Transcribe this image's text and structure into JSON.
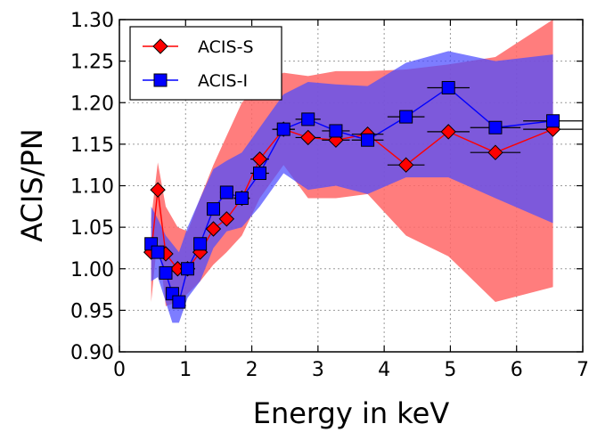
{
  "chart_data": {
    "type": "line",
    "xlabel": "Energy in keV",
    "ylabel": "ACIS/PN",
    "xlim": [
      0,
      7
    ],
    "ylim": [
      0.9,
      1.3
    ],
    "xticks": [
      "0",
      "1",
      "2",
      "3",
      "4",
      "5",
      "6",
      "7"
    ],
    "yticks": [
      "0.90",
      "0.95",
      "1.00",
      "1.05",
      "1.10",
      "1.15",
      "1.20",
      "1.25",
      "1.30"
    ],
    "grid": true,
    "legend_position": "top-left",
    "series": [
      {
        "name": "ACIS-S",
        "color": "#ff0000",
        "marker": "diamond",
        "band_color": "#ff6666",
        "x": [
          0.48,
          0.58,
          0.7,
          0.88,
          1.03,
          1.22,
          1.42,
          1.62,
          1.85,
          2.12,
          2.48,
          2.85,
          3.27,
          3.75,
          4.33,
          4.97,
          5.68,
          6.55
        ],
        "y": [
          1.02,
          1.095,
          1.018,
          1.0,
          1.0,
          1.02,
          1.048,
          1.06,
          1.085,
          1.132,
          1.168,
          1.158,
          1.155,
          1.162,
          1.125,
          1.165,
          1.14,
          1.168
        ],
        "xerr": [
          0.05,
          0.05,
          0.06,
          0.07,
          0.08,
          0.09,
          0.1,
          0.1,
          0.12,
          0.14,
          0.17,
          0.19,
          0.21,
          0.24,
          0.28,
          0.32,
          0.38,
          0.45
        ],
        "band_lower": [
          0.96,
          1.04,
          0.955,
          0.96,
          0.97,
          0.985,
          1.005,
          1.02,
          1.04,
          1.085,
          1.125,
          1.085,
          1.085,
          1.09,
          1.04,
          1.015,
          0.96,
          0.978
        ],
        "band_upper": [
          1.06,
          1.128,
          1.075,
          1.05,
          1.045,
          1.085,
          1.125,
          1.16,
          1.2,
          1.222,
          1.236,
          1.232,
          1.238,
          1.238,
          1.24,
          1.246,
          1.255,
          1.3
        ]
      },
      {
        "name": "ACIS-I",
        "color": "#0000ff",
        "marker": "square",
        "band_color": "#4b4bff",
        "x": [
          0.48,
          0.58,
          0.7,
          0.8,
          0.9,
          1.03,
          1.22,
          1.42,
          1.62,
          1.85,
          2.12,
          2.48,
          2.85,
          3.27,
          3.75,
          4.33,
          4.97,
          5.68,
          6.55
        ],
        "y": [
          1.03,
          1.02,
          0.995,
          0.97,
          0.96,
          1.0,
          1.03,
          1.072,
          1.092,
          1.085,
          1.115,
          1.168,
          1.18,
          1.166,
          1.155,
          1.183,
          1.218,
          1.17,
          1.178
        ],
        "xerr": [
          0.05,
          0.05,
          0.06,
          0.06,
          0.07,
          0.08,
          0.09,
          0.1,
          0.1,
          0.12,
          0.14,
          0.17,
          0.19,
          0.21,
          0.24,
          0.28,
          0.32,
          0.38,
          0.45
        ],
        "band_lower": [
          0.985,
          0.99,
          0.96,
          0.935,
          0.935,
          0.965,
          0.985,
          1.025,
          1.045,
          1.05,
          1.075,
          1.115,
          1.095,
          1.1,
          1.09,
          1.11,
          1.11,
          1.085,
          1.055
        ],
        "band_upper": [
          1.075,
          1.06,
          1.04,
          1.03,
          1.02,
          1.05,
          1.085,
          1.12,
          1.13,
          1.14,
          1.17,
          1.21,
          1.225,
          1.222,
          1.22,
          1.248,
          1.262,
          1.25,
          1.258
        ]
      }
    ]
  }
}
